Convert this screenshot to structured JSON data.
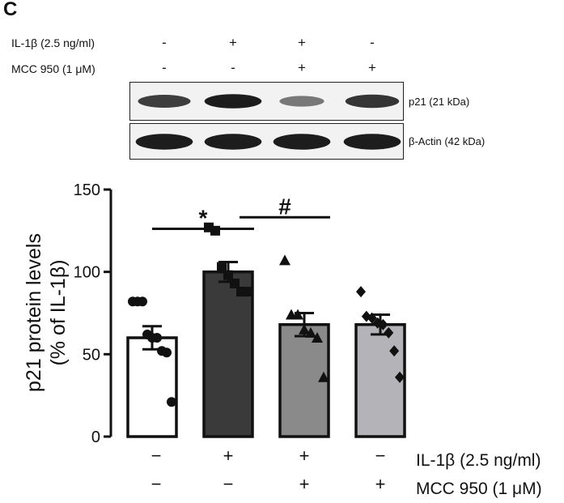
{
  "panel_label": "C",
  "blot": {
    "conditions": [
      {
        "label": "IL-1β  (2.5 ng/ml)",
        "signs": [
          "-",
          "+",
          "+",
          "-"
        ]
      },
      {
        "label": "MCC 950 (1 μM)",
        "signs": [
          "-",
          "-",
          "+",
          "+"
        ]
      }
    ],
    "bands": [
      {
        "label": "p21 (21 kDa)",
        "intensities": [
          0.75,
          0.95,
          0.4,
          0.8
        ]
      },
      {
        "label": "β-Actin (42 kDa)",
        "intensities": [
          0.95,
          0.95,
          0.95,
          0.95
        ]
      }
    ]
  },
  "colors": {
    "bar_fills": [
      "#ffffff",
      "#3a3a3a",
      "#8a8a8a",
      "#b4b4b8"
    ],
    "band": "#141414"
  },
  "chart_data": {
    "type": "bar",
    "title": "",
    "xlabel": "",
    "ylabel": [
      "p21 protein levels",
      "(% of IL-1β)"
    ],
    "ylim": [
      0,
      150
    ],
    "yticks": [
      0,
      50,
      100,
      150
    ],
    "categories": [
      "IL-1β −, MCC 950 −",
      "IL-1β +, MCC 950 −",
      "IL-1β +, MCC 950 +",
      "IL-1β −, MCC 950 +"
    ],
    "values": [
      60,
      100,
      68,
      68
    ],
    "sem": [
      7,
      6,
      7,
      6
    ],
    "marker_shapes": [
      "circle",
      "square",
      "triangle",
      "diamond"
    ],
    "points": [
      [
        82,
        82,
        82,
        62,
        60,
        60,
        52,
        51,
        21
      ],
      [
        127,
        125,
        103,
        98,
        93,
        88,
        88
      ],
      [
        107,
        74,
        74,
        65,
        63,
        60,
        36
      ],
      [
        88,
        73,
        72,
        69,
        68,
        63,
        52,
        36
      ]
    ],
    "significance": [
      {
        "from": 0,
        "to": 1,
        "y": 135,
        "symbol": "*"
      },
      {
        "from": 1,
        "to": 2,
        "y": 142,
        "symbol": "#"
      }
    ],
    "condition_rows": [
      {
        "label": "IL-1β (2.5 ng/ml)",
        "signs": [
          "−",
          "+",
          "+",
          "−"
        ]
      },
      {
        "label": "MCC 950 (1 μM)",
        "signs": [
          "−",
          "−",
          "+",
          "+"
        ]
      }
    ]
  }
}
